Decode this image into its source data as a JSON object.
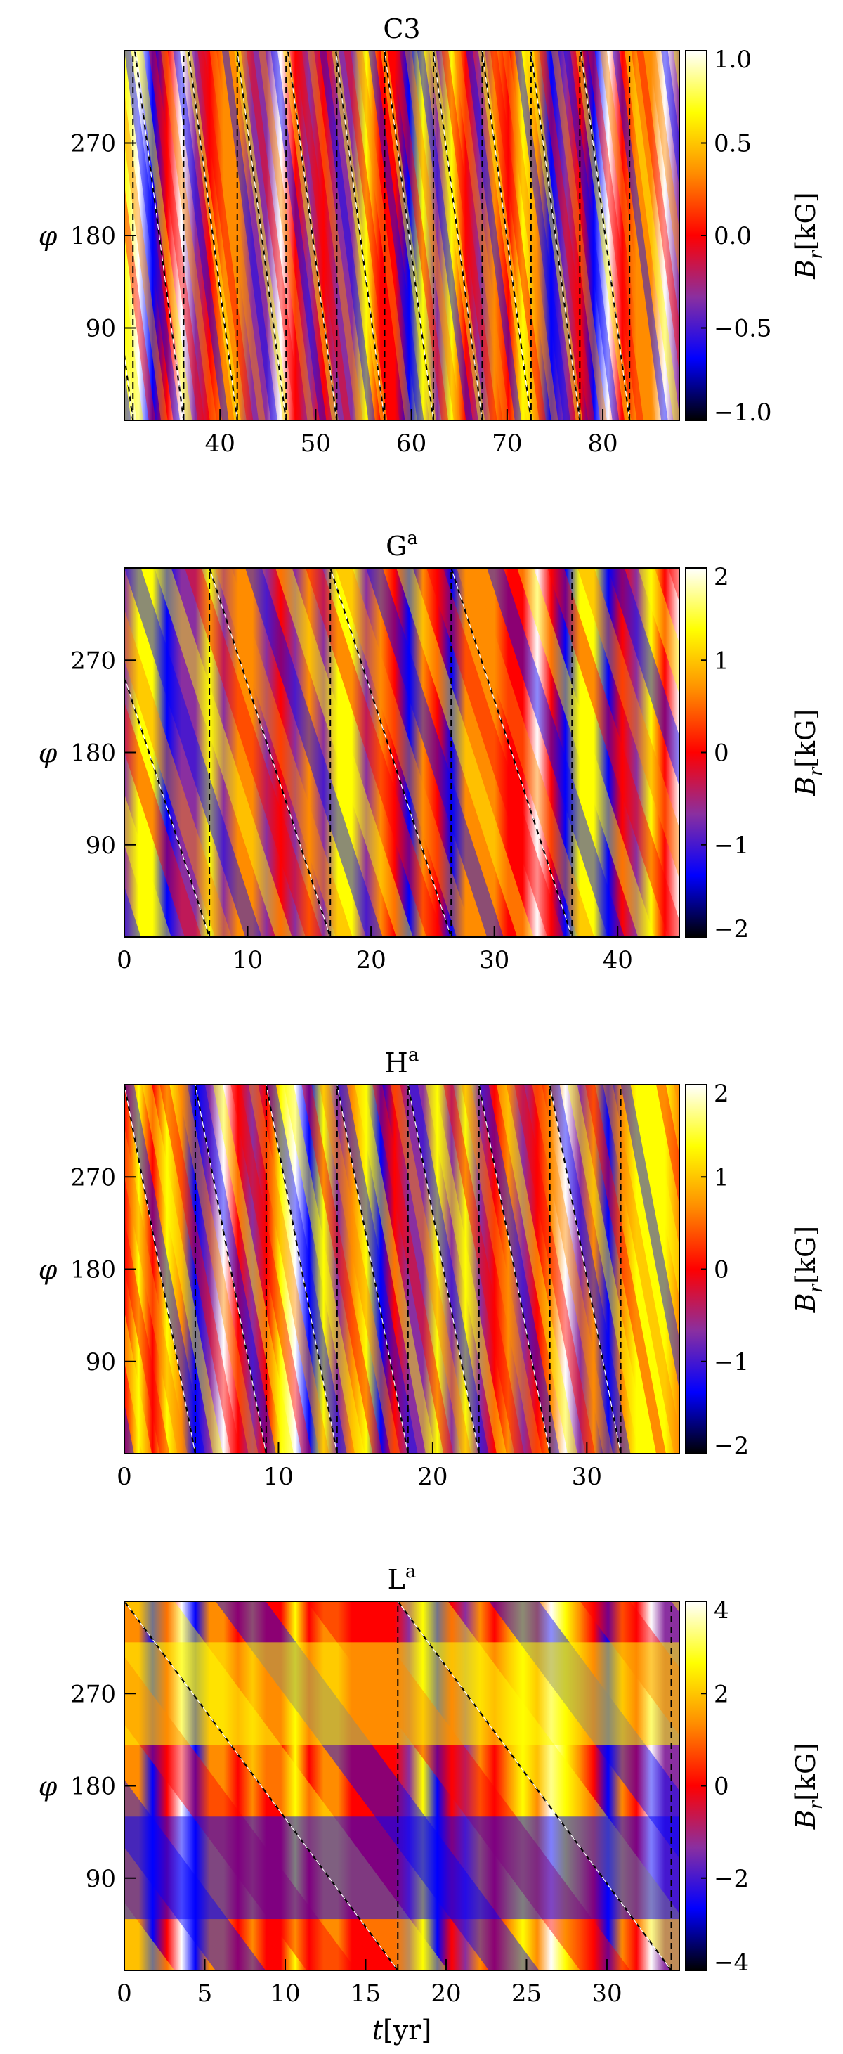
{
  "colorbar_label": "B_r[kG]",
  "colormap": [
    "#000000",
    "#0000ff",
    "#8a2fa0",
    "#ff0000",
    "#ff8c00",
    "#ffff00",
    "#ffffff"
  ],
  "chart_data": [
    {
      "type": "heatmap",
      "title": "C3",
      "ylabel": "φ",
      "xlabel": "",
      "xlim": [
        30,
        88
      ],
      "ylim": [
        0,
        360
      ],
      "yticks": [
        "90",
        "180",
        "270"
      ],
      "xticks": [
        "40",
        "50",
        "60",
        "70",
        "80"
      ],
      "colorbar": {
        "label": "B_r[kG]",
        "range": [
          -1.0,
          1.0
        ],
        "ticks": [
          "1.0",
          "0.5",
          "0.0",
          "-0.5",
          "-1.0"
        ]
      },
      "guides_resets_t": [
        30.9,
        36.2,
        41.8,
        46.9,
        52.2,
        57.2,
        62.3,
        67.4,
        72.5,
        77.6,
        82.8
      ],
      "guide_period_yr": 5.1
    },
    {
      "type": "heatmap",
      "title": "G",
      "title_superscript": "a",
      "ylabel": "φ",
      "xlabel": "",
      "xlim": [
        0,
        45
      ],
      "ylim": [
        0,
        360
      ],
      "yticks": [
        "90",
        "180",
        "270"
      ],
      "xticks": [
        "0",
        "10",
        "20",
        "30",
        "40"
      ],
      "colorbar": {
        "label": "B_r[kG]",
        "range": [
          -2,
          2
        ],
        "ticks": [
          "2",
          "1",
          "0",
          "-1",
          "-2"
        ]
      },
      "guides_resets_t": [
        6.9,
        16.7,
        26.5,
        36.3
      ],
      "guide_period_yr": 9.8
    },
    {
      "type": "heatmap",
      "title": "H",
      "title_superscript": "a",
      "ylabel": "φ",
      "xlabel": "",
      "xlim": [
        0,
        36
      ],
      "ylim": [
        0,
        360
      ],
      "yticks": [
        "90",
        "180",
        "270"
      ],
      "xticks": [
        "0",
        "10",
        "20",
        "30"
      ],
      "colorbar": {
        "label": "B_r[kG]",
        "range": [
          -2,
          2
        ],
        "ticks": [
          "2",
          "1",
          "0",
          "-1",
          "-2"
        ]
      },
      "guides_resets_t": [
        4.6,
        9.2,
        13.8,
        18.4,
        23.0,
        27.6,
        32.2
      ],
      "guide_period_yr": 4.6
    },
    {
      "type": "heatmap",
      "title": "L",
      "title_superscript": "a",
      "ylabel": "φ",
      "xlabel": "t[yr]",
      "xlim": [
        0,
        34.5
      ],
      "ylim": [
        0,
        360
      ],
      "yticks": [
        "90",
        "180",
        "270"
      ],
      "xticks": [
        "0",
        "5",
        "10",
        "15",
        "20",
        "25",
        "30"
      ],
      "colorbar": {
        "label": "B_r[kG]",
        "range": [
          -4,
          4
        ],
        "ticks": [
          "4",
          "2",
          "0",
          "-2",
          "-4"
        ]
      },
      "guides_resets_t": [
        17.0,
        34.0
      ],
      "guide_period_yr": 17.0
    }
  ]
}
